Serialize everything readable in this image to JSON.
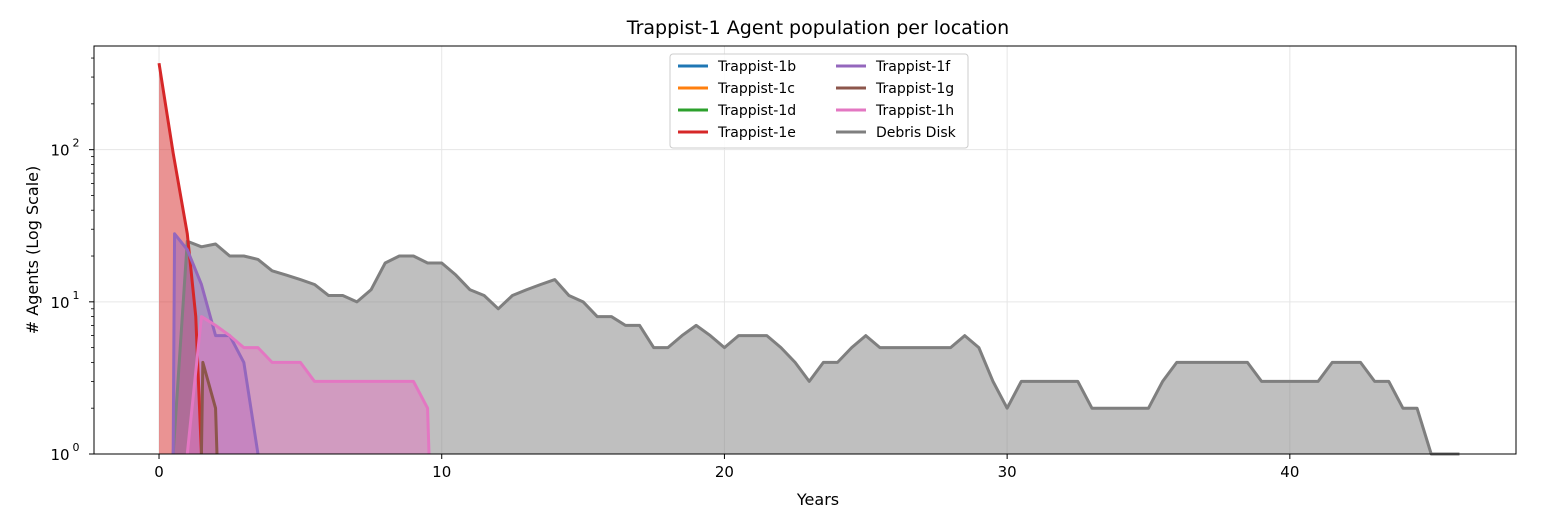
{
  "chart_data": {
    "type": "area",
    "title": "Trappist-1 Agent population per location",
    "xlabel": "Years",
    "ylabel": "# Agents (Log Scale)",
    "yscale": "log",
    "xlim": [
      -2.3,
      48.0
    ],
    "ylim": [
      1,
      480
    ],
    "xticks": [
      0,
      10,
      20,
      30,
      40
    ],
    "xtick_labels": [
      "0",
      "10",
      "20",
      "30",
      "40"
    ],
    "yticks": [
      1,
      10,
      100
    ],
    "ytick_labels": [
      "10",
      "10",
      "10"
    ],
    "ytick_exponents": [
      "0",
      "1",
      "2"
    ],
    "grid": true,
    "legend_position": "top-center",
    "series": [
      {
        "name": "Trappist-1b",
        "color": "#1f77b4",
        "x": [],
        "y": []
      },
      {
        "name": "Trappist-1c",
        "color": "#ff7f0e",
        "x": [],
        "y": []
      },
      {
        "name": "Trappist-1d",
        "color": "#2ca02c",
        "x": [],
        "y": []
      },
      {
        "name": "Trappist-1e",
        "color": "#d62728",
        "x": [
          0,
          0.5,
          1.0,
          1.3,
          1.5
        ],
        "y": [
          370,
          95,
          28,
          8,
          1
        ]
      },
      {
        "name": "Trappist-1f",
        "color": "#9467bd",
        "x": [
          0.5,
          0.55,
          1.0,
          1.5,
          2.0,
          2.5,
          3.0,
          3.5
        ],
        "y": [
          1,
          28,
          22,
          13,
          6,
          6,
          4,
          1
        ]
      },
      {
        "name": "Trappist-1g",
        "color": "#8c564b",
        "x": [
          1.5,
          1.55,
          2.0,
          2.05
        ],
        "y": [
          1,
          4,
          2,
          1
        ]
      },
      {
        "name": "Trappist-1h",
        "color": "#e377c2",
        "x": [
          1.0,
          1.5,
          2.0,
          2.5,
          3.0,
          3.5,
          4.0,
          4.5,
          5.0,
          5.5,
          6.0,
          6.5,
          7.0,
          7.5,
          8.0,
          8.5,
          9.0,
          9.5,
          9.55
        ],
        "y": [
          1,
          8,
          7,
          6,
          5,
          5,
          4,
          4,
          4,
          3,
          3,
          3,
          3,
          3,
          3,
          3,
          3,
          2,
          1
        ]
      },
      {
        "name": "Debris Disk",
        "color": "#7f7f7f",
        "x": [
          0.5,
          1.0,
          1.5,
          2.0,
          2.5,
          3.0,
          3.5,
          4.0,
          4.5,
          5.0,
          5.5,
          6.0,
          6.5,
          7.0,
          7.5,
          8.0,
          8.5,
          9.0,
          9.5,
          10.0,
          10.5,
          11.0,
          11.5,
          12.0,
          12.5,
          13.0,
          13.5,
          14.0,
          14.5,
          15.0,
          15.5,
          16.0,
          16.5,
          17.0,
          17.5,
          18.0,
          18.5,
          19.0,
          19.5,
          20.0,
          20.5,
          21.0,
          21.5,
          22.0,
          22.5,
          23.0,
          23.5,
          24.0,
          24.5,
          25.0,
          25.5,
          26.0,
          26.5,
          27.0,
          27.5,
          28.0,
          28.5,
          29.0,
          29.5,
          30.0,
          30.5,
          31.0,
          31.5,
          32.0,
          32.5,
          33.0,
          33.5,
          34.0,
          34.5,
          35.0,
          35.5,
          36.0,
          36.5,
          37.0,
          37.5,
          38.0,
          38.5,
          39.0,
          39.5,
          40.0,
          40.5,
          41.0,
          41.5,
          42.0,
          42.5,
          43.0,
          43.5,
          44.0,
          44.5,
          45.0,
          45.5,
          46.0
        ],
        "y": [
          1,
          25,
          23,
          24,
          20,
          20,
          19,
          16,
          15,
          14,
          13,
          11,
          11,
          10,
          12,
          18,
          20,
          20,
          18,
          18,
          15,
          12,
          11,
          9,
          11,
          12,
          13,
          14,
          11,
          10,
          8,
          8,
          7,
          7,
          5,
          5,
          6,
          7,
          6,
          5,
          6,
          6,
          6,
          5,
          4,
          3,
          4,
          4,
          5,
          6,
          5,
          5,
          5,
          5,
          5,
          5,
          6,
          5,
          3,
          2,
          3,
          3,
          3,
          3,
          3,
          2,
          2,
          2,
          2,
          2,
          3,
          4,
          4,
          4,
          4,
          4,
          4,
          3,
          3,
          3,
          3,
          3,
          4,
          4,
          4,
          3,
          3,
          2,
          2,
          1,
          1,
          1
        ]
      }
    ]
  }
}
